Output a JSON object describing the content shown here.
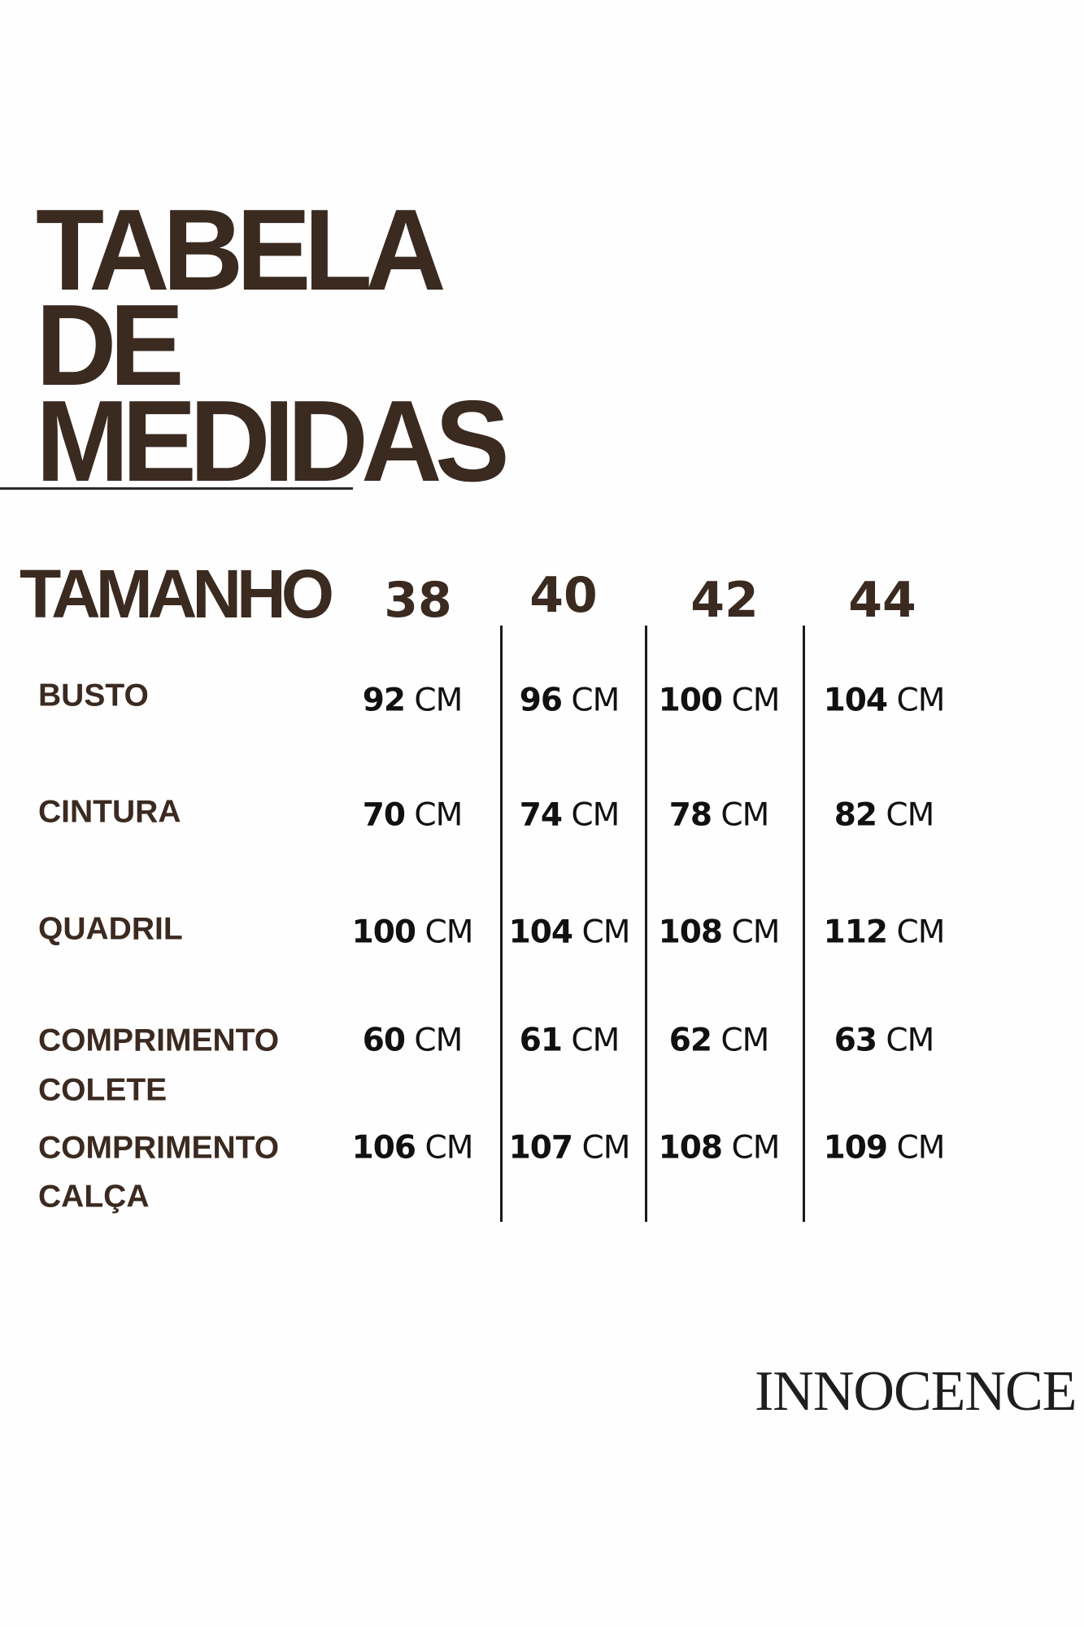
{
  "title": {
    "line1": "TABELA",
    "line2": "DE",
    "line3": "MEDIDAS"
  },
  "header": {
    "label": "TAMANHO",
    "sizes": [
      "38",
      "40",
      "42",
      "44"
    ]
  },
  "rows": [
    {
      "label": "BUSTO",
      "label2": "",
      "values": [
        "92",
        "96",
        "100",
        "104"
      ]
    },
    {
      "label": "CINTURA",
      "label2": "",
      "values": [
        "70",
        "74",
        "78",
        "82"
      ]
    },
    {
      "label": "QUADRIL",
      "label2": "",
      "values": [
        "100",
        "104",
        "108",
        "112"
      ]
    },
    {
      "label": "COMPRIMENTO",
      "label2": "COLETE",
      "values": [
        "60",
        "61",
        "62",
        "63"
      ]
    },
    {
      "label": "COMPRIMENTO",
      "label2": "CALÇA",
      "values": [
        "106",
        "107",
        "108",
        "109"
      ]
    }
  ],
  "unit": "CM",
  "brand": "INNOCENCE",
  "colors": {
    "brown": "#3b2a20",
    "text": "#111111"
  }
}
